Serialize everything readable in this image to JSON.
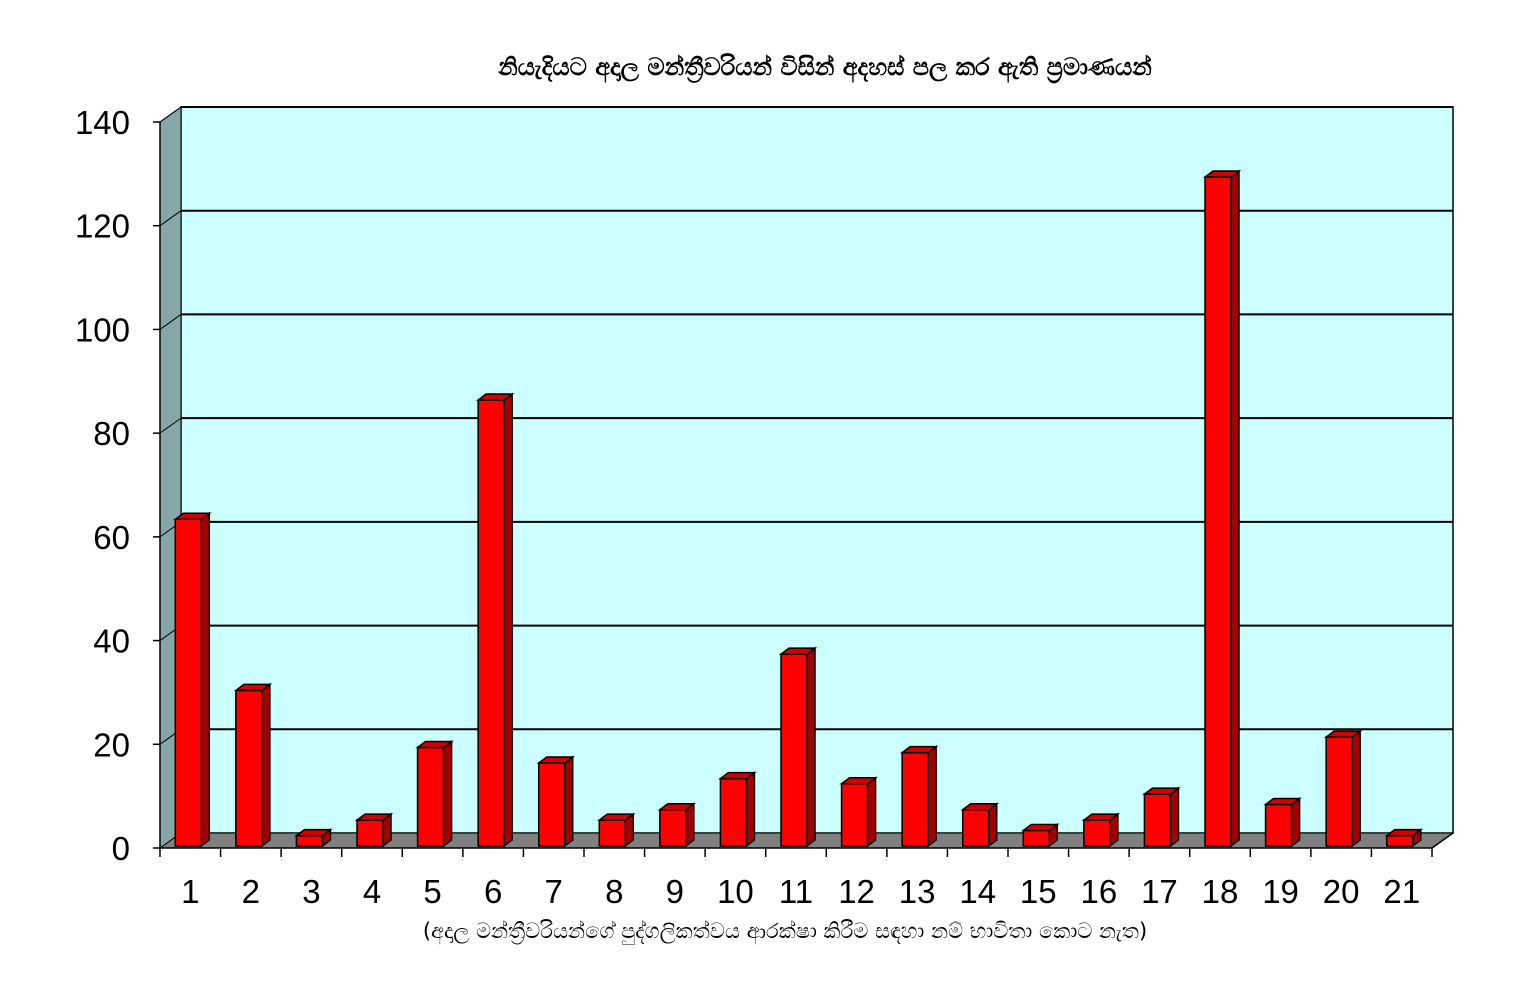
{
  "chart_data": {
    "type": "bar",
    "title": "නියැදියට අදාල මන්ත්‍රීවරියන් විසින් අදහස් පල කර ඇති ප්‍රමාණයන්",
    "xlabel": "(අදාල මන්ත්‍රීවරියන්ගේ පුද්ගලිකත්වය ආරක්ෂා කිරීම සඳහා නම් භාවිතා කොට නැත)",
    "ylabel": "",
    "ylim": [
      0,
      140
    ],
    "yticks": [
      0,
      20,
      40,
      60,
      80,
      100,
      120,
      140
    ],
    "grid": true,
    "legend": "none",
    "categories": [
      "1",
      "2",
      "3",
      "4",
      "5",
      "6",
      "7",
      "8",
      "9",
      "10",
      "11",
      "12",
      "13",
      "14",
      "15",
      "16",
      "17",
      "18",
      "19",
      "20",
      "21"
    ],
    "values": [
      63,
      30,
      2,
      5,
      19,
      86,
      16,
      5,
      7,
      13,
      37,
      12,
      18,
      7,
      3,
      5,
      10,
      129,
      8,
      21,
      2
    ],
    "colors": {
      "bar_front": "#ff0000",
      "bar_side": "#a30000",
      "bar_top": "#d40000",
      "plot_back": "#ccffff",
      "side_wall": "#86a7a7",
      "floor": "#808080",
      "grid": "#000000"
    }
  }
}
